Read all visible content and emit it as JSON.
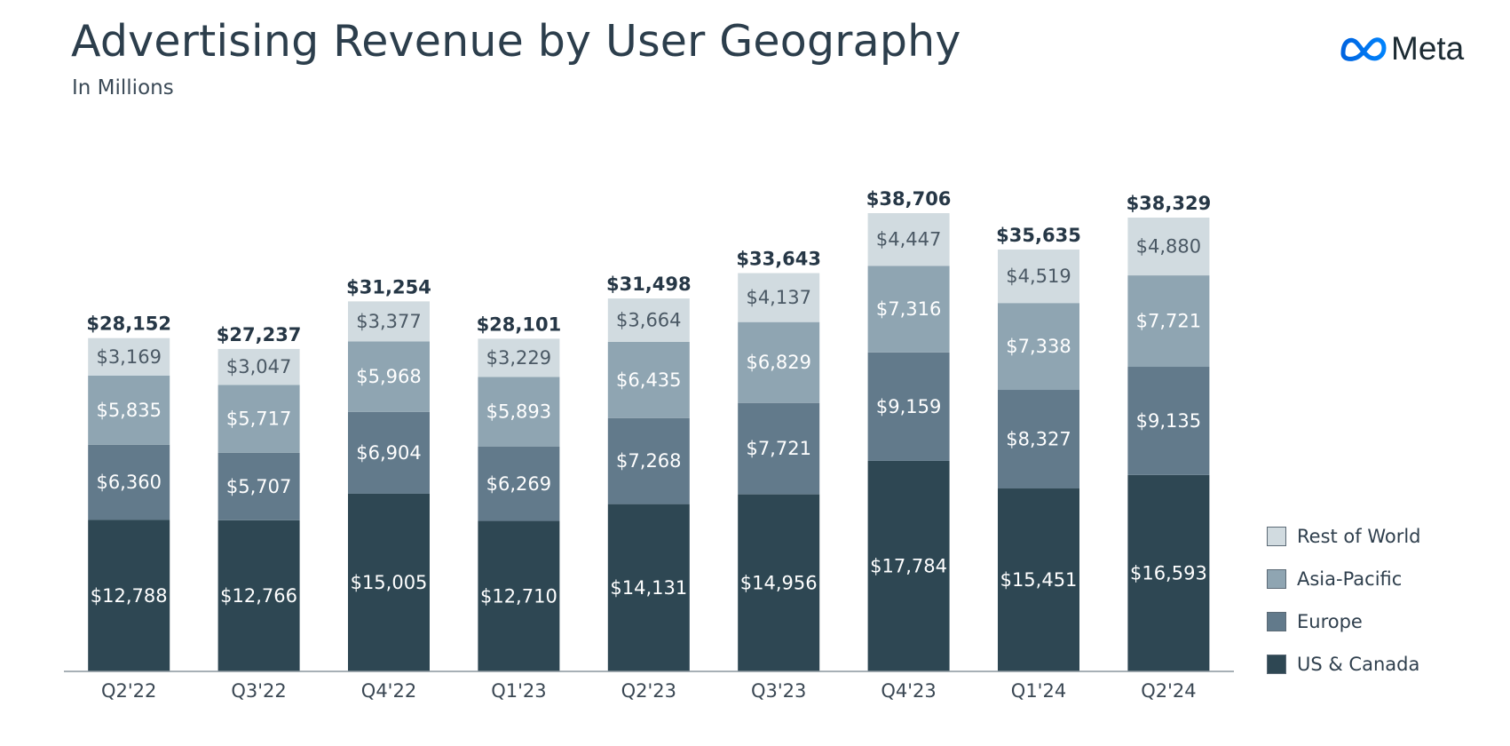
{
  "header": {
    "title": "Advertising Revenue by User Geography",
    "subtitle": "In Millions",
    "logo_text": "Meta"
  },
  "colors": {
    "us_canada": "#2e4753",
    "europe": "#627a8b",
    "asia_pacific": "#8fa5b2",
    "rest_of_world": "#d1dbe0"
  },
  "chart_data": {
    "type": "bar",
    "stacked": true,
    "categories": [
      "Q2'22",
      "Q3'22",
      "Q4'22",
      "Q1'23",
      "Q2'23",
      "Q3'23",
      "Q4'23",
      "Q1'24",
      "Q2'24"
    ],
    "series": [
      {
        "name": "US & Canada",
        "color": "#2e4753",
        "label_color": "#ffffff",
        "values": [
          12788,
          12766,
          15005,
          12710,
          14131,
          14956,
          17784,
          15451,
          16593
        ],
        "labels": [
          "$12,788",
          "$12,766",
          "$15,005",
          "$12,710",
          "$14,131",
          "$14,956",
          "$17,784",
          "$15,451",
          "$16,593"
        ]
      },
      {
        "name": "Europe",
        "color": "#627a8b",
        "label_color": "#ffffff",
        "values": [
          6360,
          5707,
          6904,
          6269,
          7268,
          7721,
          9159,
          8327,
          9135
        ],
        "labels": [
          "$6,360",
          "$5,707",
          "$6,904",
          "$6,269",
          "$7,268",
          "$7,721",
          "$9,159",
          "$8,327",
          "$9,135"
        ]
      },
      {
        "name": "Asia-Pacific",
        "color": "#8fa5b2",
        "label_color": "#ffffff",
        "values": [
          5835,
          5717,
          5968,
          5893,
          6435,
          6829,
          7316,
          7338,
          7721
        ],
        "labels": [
          "$5,835",
          "$5,717",
          "$5,968",
          "$5,893",
          "$6,435",
          "$6,829",
          "$7,316",
          "$7,338",
          "$7,721"
        ]
      },
      {
        "name": "Rest of World",
        "color": "#d1dbe0",
        "label_color": "#4a5864",
        "values": [
          3169,
          3047,
          3377,
          3229,
          3664,
          4137,
          4447,
          4519,
          4880
        ],
        "labels": [
          "$3,169",
          "$3,047",
          "$3,377",
          "$3,229",
          "$3,664",
          "$4,137",
          "$4,447",
          "$4,519",
          "$4,880"
        ]
      }
    ],
    "totals": [
      28152,
      27237,
      31254,
      28101,
      31498,
      33643,
      38706,
      35635,
      38329
    ],
    "total_labels": [
      "$28,152",
      "$27,237",
      "$31,254",
      "$28,101",
      "$31,498",
      "$33,643",
      "$38,706",
      "$35,635",
      "$38,329"
    ],
    "ylim": [
      0,
      42000
    ],
    "grid": false,
    "legend": "right",
    "legend_order": [
      "Rest of World",
      "Asia-Pacific",
      "Europe",
      "US & Canada"
    ]
  }
}
